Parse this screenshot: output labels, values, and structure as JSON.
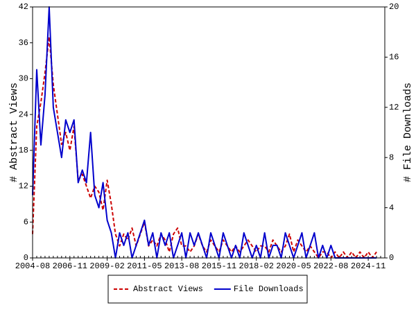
{
  "chart_data": {
    "type": "line",
    "x": [
      "2004-08",
      "2004-11",
      "2005-02",
      "2005-05",
      "2005-08",
      "2005-11",
      "2006-02",
      "2006-05",
      "2006-08",
      "2006-11",
      "2007-02",
      "2007-05",
      "2007-08",
      "2007-11",
      "2008-02",
      "2008-05",
      "2008-08",
      "2008-11",
      "2009-02",
      "2009-05",
      "2009-08",
      "2009-11",
      "2010-02",
      "2010-05",
      "2010-08",
      "2010-11",
      "2011-02",
      "2011-05",
      "2011-08",
      "2011-11",
      "2012-02",
      "2012-05",
      "2012-08",
      "2012-11",
      "2013-02",
      "2013-05",
      "2013-08",
      "2013-11",
      "2014-02",
      "2014-05",
      "2014-08",
      "2014-11",
      "2015-02",
      "2015-05",
      "2015-08",
      "2015-11",
      "2016-02",
      "2016-05",
      "2016-08",
      "2016-11",
      "2017-02",
      "2017-05",
      "2017-08",
      "2017-11",
      "2018-02",
      "2018-05",
      "2018-08",
      "2018-11",
      "2019-02",
      "2019-05",
      "2019-08",
      "2019-11",
      "2020-02",
      "2020-05",
      "2020-08",
      "2020-11",
      "2021-02",
      "2021-05",
      "2021-08",
      "2021-11",
      "2022-02",
      "2022-05",
      "2022-08",
      "2022-11",
      "2023-02",
      "2023-05",
      "2023-08",
      "2023-11",
      "2024-02",
      "2024-05",
      "2024-08",
      "2024-11",
      "2025-02",
      "2025-05"
    ],
    "xticks": [
      "2004-08",
      "2006-11",
      "2009-02",
      "2011-05",
      "2013-08",
      "2015-11",
      "2018-02",
      "2020-05",
      "2022-08",
      "2024-11"
    ],
    "ylabel": "# Abstract Views",
    "y2label": "# File Downloads",
    "ylim": [
      0,
      42
    ],
    "yticks": [
      0,
      6,
      12,
      18,
      24,
      30,
      36,
      42
    ],
    "y2lim": [
      0,
      20
    ],
    "y2ticks": [
      0,
      4,
      8,
      12,
      16,
      20
    ],
    "legend": "bottom",
    "series": [
      {
        "name": "Abstract Views",
        "color": "#cc0000",
        "style": "dashed",
        "axis": "y",
        "values": [
          4,
          22,
          26,
          31,
          37,
          29,
          24,
          19,
          21,
          18,
          22,
          13,
          14,
          12,
          10,
          12,
          11,
          8,
          13,
          9,
          4,
          2,
          4,
          3,
          5,
          2,
          4,
          6,
          2,
          3,
          2,
          4,
          3,
          1,
          4,
          5,
          2,
          2,
          1,
          2,
          4,
          2,
          1,
          3,
          2,
          1,
          3,
          2,
          1,
          2,
          1,
          2,
          3,
          2,
          1,
          2,
          2,
          1,
          3,
          2,
          1,
          2,
          4,
          1,
          3,
          2,
          1,
          2,
          1,
          0,
          1,
          1,
          0,
          1,
          0,
          1,
          0,
          1,
          0,
          1,
          0,
          1,
          0,
          1
        ]
      },
      {
        "name": "File Downloads",
        "color": "#0000cc",
        "style": "solid",
        "axis": "y2",
        "values": [
          5,
          15,
          9,
          13,
          20,
          12,
          10,
          8,
          11,
          10,
          11,
          6,
          7,
          6,
          10,
          5,
          4,
          6,
          3,
          2,
          0,
          2,
          1,
          2,
          0,
          1,
          2,
          3,
          1,
          2,
          0,
          2,
          1,
          2,
          0,
          1,
          2,
          0,
          2,
          1,
          2,
          1,
          0,
          2,
          1,
          0,
          2,
          1,
          0,
          1,
          0,
          2,
          1,
          0,
          1,
          0,
          2,
          0,
          1,
          1,
          0,
          2,
          1,
          0,
          1,
          2,
          0,
          1,
          2,
          0,
          1,
          0,
          1,
          0,
          0,
          0,
          0,
          0,
          0,
          0,
          0,
          0,
          0,
          0
        ]
      }
    ]
  }
}
